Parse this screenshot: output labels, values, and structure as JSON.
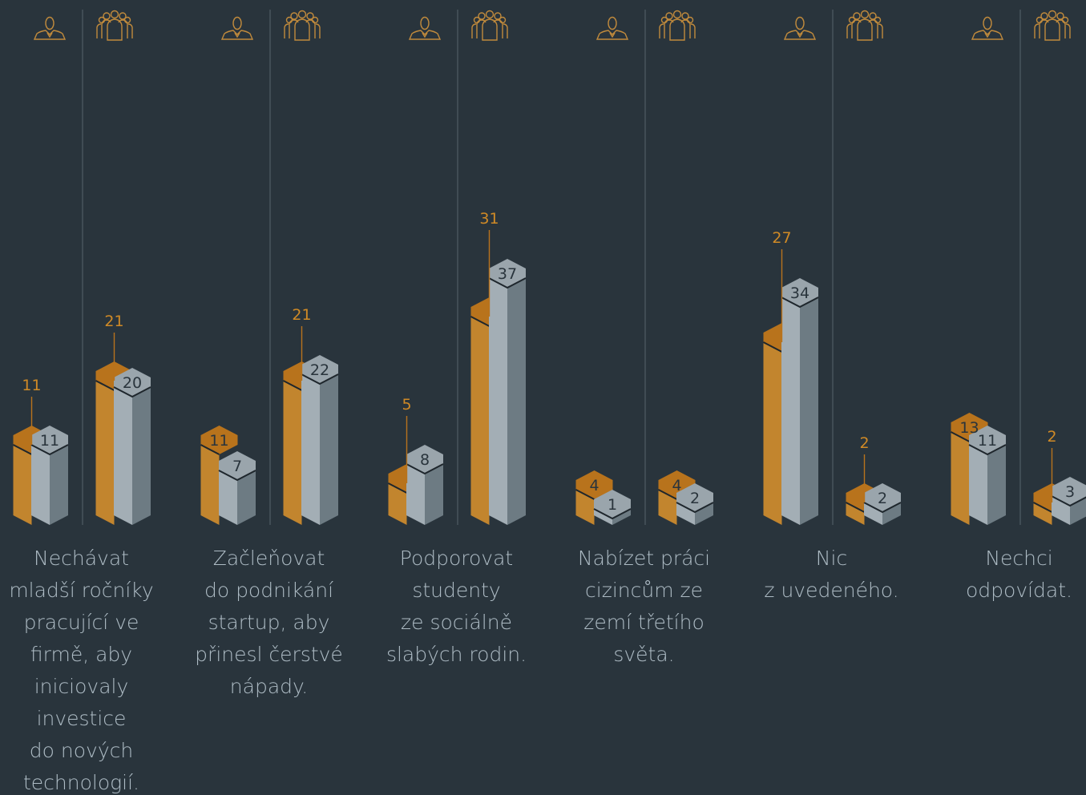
{
  "chart_data": {
    "type": "bar",
    "categories": [
      {
        "lines": [
          "Nechávat",
          "mladší ročníky",
          "pracující ve",
          "firmě, aby",
          "iniciovaly",
          "investice",
          "do nových",
          "technologií."
        ]
      },
      {
        "lines": [
          "Začleňovat",
          "do podnikání",
          "startup, aby",
          "přinesl čerstvé",
          "nápady."
        ]
      },
      {
        "lines": [
          "Podporovat",
          "studenty",
          "ze sociálně",
          "slabých rodin."
        ]
      },
      {
        "lines": [
          "Nabízet práci",
          "cizincům ze",
          "zemí třetího",
          "světa."
        ]
      },
      {
        "lines": [
          "Nic",
          "z uvedeného."
        ]
      },
      {
        "lines": [
          "Nechci",
          "odpovídat."
        ]
      }
    ],
    "groups": [
      "individual",
      "group"
    ],
    "series": [
      {
        "values": [
          [
            11,
            21
          ],
          [
            11,
            21
          ],
          [
            5,
            31
          ],
          [
            4,
            4
          ],
          [
            27,
            2
          ],
          [
            13,
            2
          ]
        ]
      },
      {
        "values": [
          [
            11,
            20
          ],
          [
            7,
            22
          ],
          [
            8,
            37
          ],
          [
            1,
            2
          ],
          [
            34,
            2
          ],
          [
            11,
            3
          ]
        ]
      }
    ],
    "icons": [
      "person-icon",
      "people-group-icon"
    ],
    "colors": {
      "series1": "#b8731c",
      "series1_label": "#d08a26",
      "series2": "#a3aeb5",
      "series2_shade": "#6d7b83",
      "background": "#29343c",
      "text": "#aebcc5",
      "divider": "#4f5c64"
    }
  }
}
